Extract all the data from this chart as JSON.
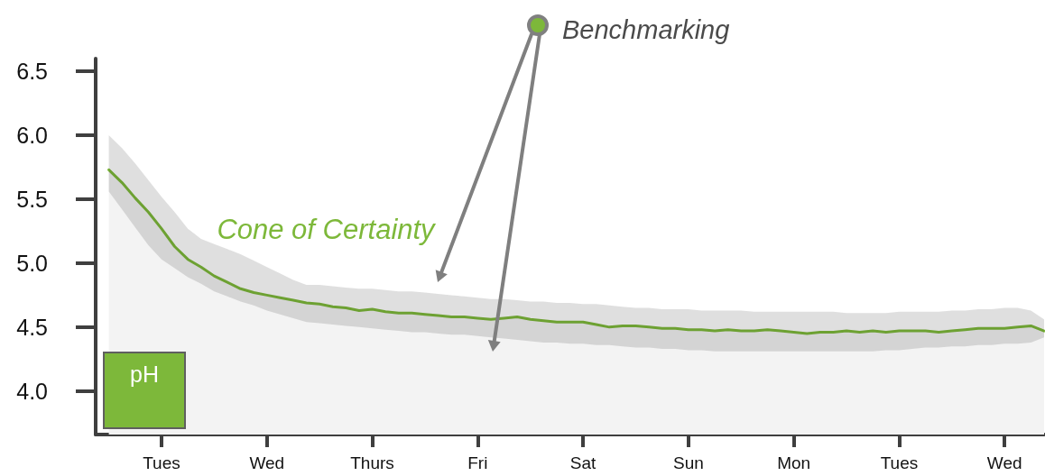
{
  "chart_data": {
    "type": "area",
    "ylabel": "pH",
    "annotations": [
      "Benchmarking",
      "Cone of Certainty"
    ],
    "categories": [
      null,
      null,
      null,
      null,
      null,
      "Tues",
      null,
      null,
      null,
      null,
      null,
      null,
      null,
      "Wed",
      null,
      null,
      null,
      null,
      null,
      null,
      null,
      "Thurs",
      null,
      null,
      null,
      null,
      null,
      null,
      null,
      "Fri",
      null,
      null,
      null,
      null,
      null,
      null,
      null,
      "Sat",
      null,
      null,
      null,
      null,
      null,
      null,
      null,
      "Sun",
      null,
      null,
      null,
      null,
      null,
      null,
      null,
      "Mon",
      null,
      null,
      null,
      null,
      null,
      null,
      null,
      "Tues",
      null,
      null,
      null,
      null,
      null,
      null,
      null,
      "Wed",
      null,
      null,
      null
    ],
    "series": [
      {
        "color": "#7db83a",
        "values": [
          null,
          5.73,
          5.63,
          5.51,
          5.4,
          5.27,
          5.13,
          5.03,
          4.97,
          4.9,
          4.85,
          4.8,
          4.77,
          4.75,
          4.73,
          4.71,
          4.69,
          4.68,
          4.66,
          4.65,
          4.63,
          4.64,
          4.62,
          4.61,
          4.61,
          4.6,
          4.59,
          4.58,
          4.58,
          4.57,
          4.56,
          4.57,
          4.58,
          4.56,
          4.55,
          4.54,
          4.54,
          4.54,
          4.52,
          4.5,
          4.51,
          4.51,
          4.5,
          4.49,
          4.49,
          4.48,
          4.48,
          4.47,
          4.48,
          4.47,
          4.47,
          4.48,
          4.47,
          4.46,
          4.45,
          4.46,
          4.46,
          4.47,
          4.46,
          4.47,
          4.46,
          4.47,
          4.47,
          4.47,
          4.46,
          4.47,
          4.48,
          4.49,
          4.49,
          4.49,
          4.5,
          4.51,
          4.47
        ],
        "upper": [
          null,
          6,
          5.9,
          5.78,
          5.65,
          5.52,
          5.4,
          5.27,
          5.19,
          5.15,
          5.11,
          5.07,
          5.02,
          4.97,
          4.92,
          4.87,
          4.83,
          4.83,
          4.82,
          4.81,
          4.8,
          4.8,
          4.79,
          4.78,
          4.78,
          4.77,
          4.76,
          4.75,
          4.74,
          4.73,
          4.72,
          4.72,
          4.71,
          4.7,
          4.7,
          4.69,
          4.69,
          4.68,
          4.68,
          4.67,
          4.66,
          4.65,
          4.65,
          4.64,
          4.64,
          4.64,
          4.63,
          4.63,
          4.63,
          4.63,
          4.62,
          4.62,
          4.62,
          4.62,
          4.62,
          4.62,
          4.62,
          4.61,
          4.61,
          4.61,
          4.61,
          4.62,
          4.62,
          4.62,
          4.62,
          4.63,
          4.63,
          4.64,
          4.64,
          4.65,
          4.65,
          4.63,
          4.56
        ],
        "lower": [
          null,
          5.56,
          5.42,
          5.28,
          5.14,
          5.03,
          4.96,
          4.89,
          4.84,
          4.78,
          4.74,
          4.7,
          4.67,
          4.63,
          4.6,
          4.57,
          4.54,
          4.53,
          4.52,
          4.51,
          4.5,
          4.49,
          4.48,
          4.47,
          4.46,
          4.46,
          4.45,
          4.44,
          4.44,
          4.43,
          4.42,
          4.41,
          4.4,
          4.39,
          4.38,
          4.38,
          4.37,
          4.37,
          4.36,
          4.36,
          4.35,
          4.34,
          4.34,
          4.33,
          4.33,
          4.32,
          4.32,
          4.31,
          4.31,
          4.31,
          4.31,
          4.31,
          4.31,
          4.31,
          4.31,
          4.31,
          4.31,
          4.31,
          4.31,
          4.31,
          4.32,
          4.32,
          4.33,
          4.34,
          4.34,
          4.35,
          4.35,
          4.36,
          4.36,
          4.37,
          4.37,
          4.38,
          4.42
        ]
      }
    ],
    "ylim": [
      3.66,
      6.6
    ],
    "yticks": [
      {
        "value": 4,
        "label": "4.0"
      },
      4.5,
      {
        "value": 5,
        "label": "5.0"
      },
      5.5,
      {
        "value": 6,
        "label": "6.0"
      },
      6.5
    ]
  }
}
